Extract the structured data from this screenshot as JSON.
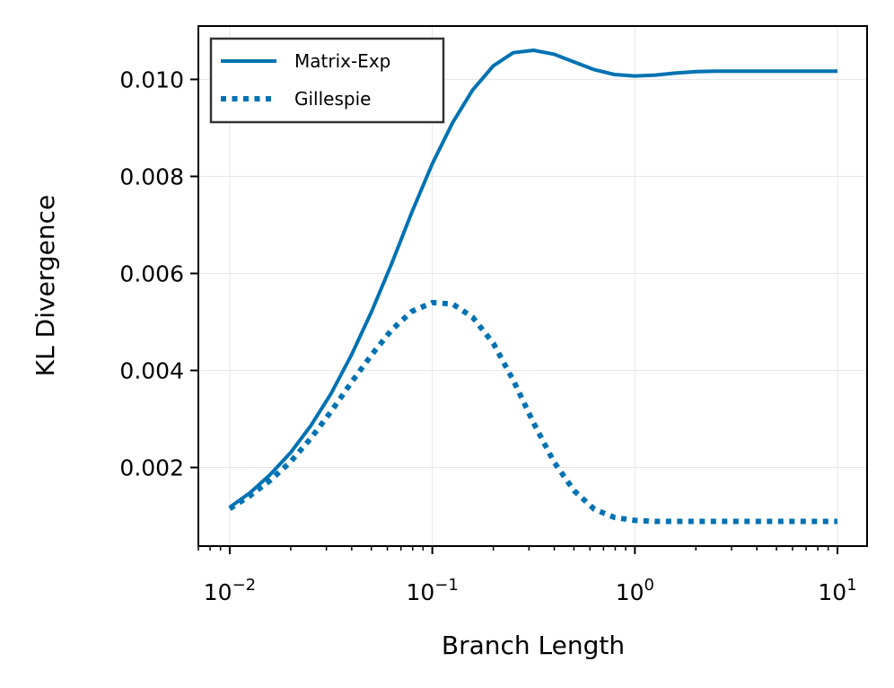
{
  "chart_data": {
    "type": "line",
    "title": "",
    "xlabel": "Branch Length",
    "ylabel": "KL Divergence",
    "xscale": "log",
    "xlim": [
      0.007,
      14
    ],
    "ylim": [
      0.00038,
      0.0111
    ],
    "grid": true,
    "legend_position": "top-left",
    "x_ticks": [
      {
        "value": 0.01,
        "base": "10",
        "exp": "−2"
      },
      {
        "value": 0.1,
        "base": "10",
        "exp": "−1"
      },
      {
        "value": 1,
        "base": "10",
        "exp": "0"
      },
      {
        "value": 10,
        "base": "10",
        "exp": "1"
      }
    ],
    "y_ticks": [
      {
        "value": 0.002,
        "label": "0.002"
      },
      {
        "value": 0.004,
        "label": "0.004"
      },
      {
        "value": 0.006,
        "label": "0.006"
      },
      {
        "value": 0.008,
        "label": "0.008"
      },
      {
        "value": 0.01,
        "label": "0.010"
      }
    ],
    "series": [
      {
        "name": "Matrix-Exp",
        "style": "solid",
        "color": "#0072b2",
        "x": [
          0.01,
          0.0126,
          0.0158,
          0.02,
          0.0251,
          0.0316,
          0.0398,
          0.0501,
          0.0631,
          0.0794,
          0.1,
          0.126,
          0.158,
          0.2,
          0.251,
          0.316,
          0.398,
          0.501,
          0.631,
          0.794,
          1.0,
          1.26,
          1.58,
          2.0,
          2.51,
          3.16,
          3.98,
          5.01,
          6.31,
          7.94,
          10.0
        ],
        "y": [
          0.00118,
          0.00148,
          0.00185,
          0.00231,
          0.00286,
          0.00352,
          0.00431,
          0.00521,
          0.00621,
          0.00727,
          0.00826,
          0.00911,
          0.00978,
          0.01028,
          0.01055,
          0.0106,
          0.01052,
          0.01036,
          0.0102,
          0.0101,
          0.01007,
          0.01009,
          0.01013,
          0.01016,
          0.01017,
          0.01017,
          0.01017,
          0.01017,
          0.01017,
          0.01017,
          0.01017
        ]
      },
      {
        "name": "Gillespie",
        "style": "dotted",
        "color": "#0072b2",
        "x": [
          0.01,
          0.0126,
          0.0158,
          0.02,
          0.0251,
          0.0316,
          0.0398,
          0.0501,
          0.0631,
          0.0794,
          0.1,
          0.126,
          0.158,
          0.2,
          0.251,
          0.316,
          0.398,
          0.501,
          0.631,
          0.794,
          1.0,
          1.26,
          1.58,
          2.0,
          2.51,
          3.16,
          3.98,
          5.01,
          6.31,
          7.94,
          10.0
        ],
        "y": [
          0.00115,
          0.00142,
          0.00173,
          0.00212,
          0.0026,
          0.00315,
          0.00375,
          0.00432,
          0.00484,
          0.00522,
          0.0054,
          0.00537,
          0.0051,
          0.00456,
          0.0038,
          0.00292,
          0.00212,
          0.00152,
          0.00114,
          0.00097,
          0.00091,
          0.00089,
          0.00089,
          0.00089,
          0.00089,
          0.00089,
          0.00089,
          0.00089,
          0.00089,
          0.00089,
          0.00089
        ]
      }
    ]
  }
}
